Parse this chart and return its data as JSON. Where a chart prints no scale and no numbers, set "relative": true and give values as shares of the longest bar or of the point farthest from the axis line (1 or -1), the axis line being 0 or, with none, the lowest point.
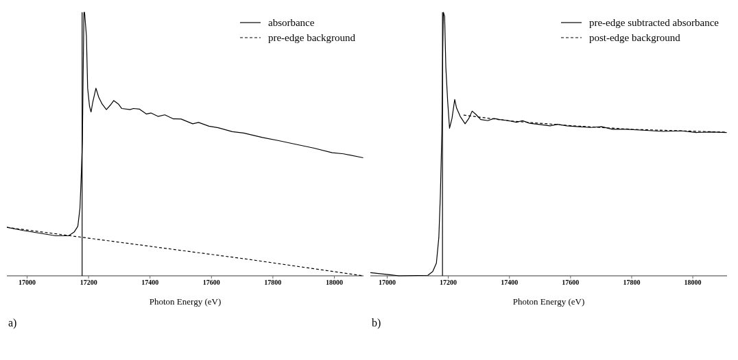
{
  "chart_data": [
    {
      "type": "line",
      "relative": true,
      "xlabel": "Photon Energy (eV)",
      "xlim": [
        16934,
        18095
      ],
      "xticks": [
        17000,
        17200,
        17400,
        17600,
        17800,
        18000
      ],
      "legend": "top right",
      "annotations": [
        "a)"
      ],
      "ref_lines": [
        {
          "axis": "x",
          "value": 17179,
          "color": "#000000"
        }
      ],
      "series": [
        {
          "name": "absorbance",
          "color": "#000000",
          "line_style": "solid",
          "x": [
            16934,
            16987,
            17093,
            17135,
            17153,
            17165,
            17172,
            17176,
            17180,
            17182,
            17185,
            17187,
            17193,
            17197,
            17203,
            17208,
            17214,
            17224,
            17233,
            17244,
            17258,
            17271,
            17282,
            17297,
            17308,
            17335,
            17346,
            17365,
            17388,
            17403,
            17426,
            17448,
            17475,
            17501,
            17539,
            17558,
            17592,
            17622,
            17668,
            17705,
            17766,
            17819,
            17879,
            17932,
            17993,
            18030,
            18094
          ],
          "values": [
            0.184,
            0.172,
            0.152,
            0.152,
            0.166,
            0.188,
            0.257,
            0.377,
            0.515,
            0.738,
            1.0,
            1.0,
            0.91,
            0.712,
            0.644,
            0.622,
            0.661,
            0.712,
            0.678,
            0.652,
            0.631,
            0.648,
            0.665,
            0.652,
            0.635,
            0.631,
            0.635,
            0.633,
            0.614,
            0.618,
            0.605,
            0.611,
            0.596,
            0.595,
            0.577,
            0.582,
            0.568,
            0.562,
            0.547,
            0.542,
            0.525,
            0.513,
            0.498,
            0.485,
            0.467,
            0.463,
            0.448
          ]
        },
        {
          "name": "pre-edge background",
          "color": "#000000",
          "line_style": "dashed",
          "x": [
            16934,
            17705,
            18094
          ],
          "values": [
            0.184,
            0.065,
            0
          ]
        }
      ]
    },
    {
      "type": "line",
      "relative": true,
      "xlabel": "Photon Energy (eV)",
      "xlim": [
        16945,
        18112
      ],
      "xticks": [
        17000,
        17200,
        17400,
        17600,
        17800,
        18000
      ],
      "legend": "top right",
      "annotations": [
        "b)"
      ],
      "ref_lines": [
        {
          "axis": "x",
          "value": 17181,
          "color": "#000000"
        }
      ],
      "series": [
        {
          "name": "pre-edge subtracted absorbance",
          "color": "#000000",
          "line_style": "solid",
          "x": [
            16945,
            17008,
            17039,
            17133,
            17149,
            17161,
            17169,
            17174,
            17179,
            17182,
            17184,
            17188,
            17192,
            17198,
            17204,
            17212,
            17221,
            17227,
            17239,
            17255,
            17267,
            17278,
            17290,
            17306,
            17329,
            17349,
            17368,
            17396,
            17423,
            17443,
            17466,
            17494,
            17533,
            17557,
            17588,
            17627,
            17666,
            17702,
            17737,
            17784,
            17847,
            17902,
            17964,
            18011,
            18058,
            18111
          ],
          "values": [
            0.012,
            0.004,
            0,
            0.002,
            0.016,
            0.048,
            0.145,
            0.306,
            0.548,
            0.871,
            1.0,
            0.984,
            0.79,
            0.661,
            0.56,
            0.597,
            0.669,
            0.637,
            0.605,
            0.577,
            0.597,
            0.625,
            0.613,
            0.593,
            0.589,
            0.597,
            0.593,
            0.589,
            0.583,
            0.589,
            0.579,
            0.575,
            0.569,
            0.575,
            0.569,
            0.566,
            0.563,
            0.566,
            0.556,
            0.556,
            0.552,
            0.548,
            0.55,
            0.544,
            0.546,
            0.544
          ]
        },
        {
          "name": "post-edge background",
          "color": "#000000",
          "line_style": "dashed",
          "x": [
            17250,
            17400,
            17600,
            17800,
            18111
          ],
          "values": [
            0.61,
            0.588,
            0.57,
            0.556,
            0.545
          ]
        }
      ]
    }
  ]
}
